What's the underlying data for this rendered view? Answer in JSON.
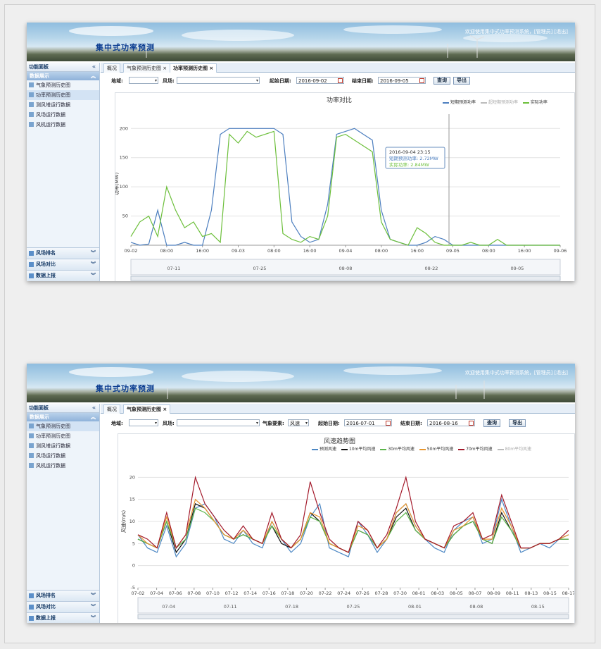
{
  "app": {
    "title": "集中式功率预测",
    "welcome": "欢迎使用集中式功率预测系统，[管理员] [退出]"
  },
  "sidebar": {
    "panel_title": "功能面板",
    "section_label": "数据展示",
    "items": [
      "气象预测历史图",
      "功率预测历史图",
      "测风塔运行数据",
      "风场运行数据",
      "风机运行数据"
    ],
    "bottom": [
      "风场排名",
      "风场对比",
      "数据上报"
    ]
  },
  "screen1": {
    "tabs": [
      {
        "label": "概况"
      },
      {
        "label": "气象预测历史图 ×"
      },
      {
        "label": "功率预测历史图 ×"
      }
    ],
    "filters": {
      "region_label": "地域:",
      "farm_label": "风场:",
      "start_label": "起始日期:",
      "start_value": "2016-09-02",
      "end_label": "结束日期:",
      "end_value": "2016-09-05",
      "query": "查询",
      "export": "导出"
    },
    "chart_data": {
      "type": "line",
      "title": "功率对比",
      "ylabel": "功率(MW)",
      "ylim": [
        0,
        210
      ],
      "yticks": [
        "50",
        "100",
        "150",
        "200"
      ],
      "x_ticks": [
        "09-02",
        "08:00",
        "16:00",
        "09-03",
        "08:00",
        "16:00",
        "09-04",
        "08:00",
        "16:00",
        "09-05",
        "08:00",
        "16:00",
        "09-06"
      ],
      "legend": [
        {
          "name": "短期预测功率",
          "color": "#4d7fbf"
        },
        {
          "name": "超短期预测功率",
          "color": "#bbbbbb"
        },
        {
          "name": "实际功率",
          "color": "#6cbf3a"
        }
      ],
      "series": [
        {
          "name": "短期预测功率",
          "color": "#4d7fbf",
          "values": [
            5,
            0,
            2,
            60,
            0,
            0,
            5,
            0,
            0,
            60,
            190,
            200,
            200,
            200,
            200,
            200,
            200,
            190,
            40,
            15,
            5,
            10,
            70,
            190,
            195,
            200,
            190,
            180,
            60,
            10,
            5,
            0,
            0,
            5,
            15,
            10,
            0,
            0,
            0,
            0,
            0,
            0,
            0,
            0,
            0,
            0,
            0,
            0,
            0
          ]
        },
        {
          "name": "实际功率",
          "color": "#6cbf3a",
          "values": [
            15,
            40,
            50,
            15,
            100,
            60,
            30,
            40,
            15,
            20,
            5,
            190,
            175,
            195,
            185,
            190,
            195,
            20,
            10,
            5,
            15,
            10,
            50,
            185,
            190,
            180,
            170,
            160,
            40,
            10,
            5,
            0,
            30,
            20,
            5,
            0,
            0,
            0,
            5,
            0,
            0,
            10,
            0,
            0,
            0,
            0,
            0,
            0,
            0
          ]
        }
      ],
      "tooltip": {
        "time": "2016-09-04 23:15",
        "line1": "短期预测功率: 2.72MW",
        "line2": "实际功率: 2.84MW"
      },
      "navigator_ticks": [
        "07-11",
        "07-25",
        "08-08",
        "08-22",
        "09-05"
      ]
    }
  },
  "screen2": {
    "tabs": [
      {
        "label": "概况"
      },
      {
        "label": "气象预测历史图 ×"
      }
    ],
    "filters": {
      "region_label": "地域:",
      "farm_label": "风场:",
      "element_label": "气象要素:",
      "element_value": "风速",
      "start_label": "起始日期:",
      "start_value": "2016-07-01",
      "end_label": "结束日期:",
      "end_value": "2016-08-16",
      "query": "查询",
      "export": "导出"
    },
    "chart_data": {
      "type": "line",
      "title": "风速趋势图",
      "ylabel": "风速(m/s)",
      "ylim": [
        -5,
        25
      ],
      "yticks": [
        "-5",
        "0",
        "5",
        "10",
        "15",
        "20"
      ],
      "x_ticks": [
        "07-02",
        "07-04",
        "07-06",
        "07-08",
        "07-10",
        "07-12",
        "07-14",
        "07-16",
        "07-18",
        "07-20",
        "07-22",
        "07-24",
        "07-26",
        "07-28",
        "07-30",
        "08-01",
        "08-03",
        "08-05",
        "08-07",
        "08-09",
        "08-11",
        "08-13",
        "08-15",
        "08-17"
      ],
      "legend": [
        {
          "name": "预测风速",
          "color": "#4d88c4"
        },
        {
          "name": "10m平均风速",
          "color": "#111111"
        },
        {
          "name": "30m平均风速",
          "color": "#5bb54a"
        },
        {
          "name": "50m平均风速",
          "color": "#e8962e"
        },
        {
          "name": "70m平均风速",
          "color": "#a3192a"
        },
        {
          "name": "80m平均风速",
          "color": "#bbbbbb"
        }
      ],
      "series": [
        {
          "name": "预测风速",
          "values": [
            7,
            4,
            3,
            9,
            2,
            5,
            13,
            14,
            11,
            6,
            5,
            8,
            5,
            4,
            10,
            6,
            3,
            5,
            11,
            14,
            4,
            3,
            2,
            10,
            7,
            3,
            6,
            12,
            14,
            9,
            6,
            4,
            3,
            8,
            10,
            11,
            5,
            6,
            15,
            9,
            3,
            4,
            5,
            4,
            6,
            7
          ]
        },
        {
          "name": "10m平均风速",
          "values": [
            6,
            5,
            4,
            10,
            3,
            6,
            14,
            13,
            10,
            7,
            6,
            7,
            6,
            5,
            9,
            5,
            4,
            6,
            12,
            10,
            5,
            4,
            3,
            8,
            7,
            4,
            6,
            11,
            13,
            8,
            6,
            5,
            4,
            7,
            9,
            10,
            6,
            5,
            12,
            8,
            4,
            4,
            5,
            5,
            6,
            6
          ]
        },
        {
          "name": "30m平均风速",
          "values": [
            6,
            5,
            4,
            10,
            4,
            6,
            13,
            12,
            10,
            7,
            6,
            7,
            6,
            5,
            9,
            6,
            4,
            6,
            11,
            10,
            5,
            4,
            3,
            8,
            7,
            4,
            6,
            10,
            12,
            8,
            6,
            5,
            4,
            7,
            9,
            10,
            6,
            5,
            11,
            8,
            4,
            4,
            5,
            5,
            6,
            6
          ]
        },
        {
          "name": "50m平均风速",
          "values": [
            7,
            5,
            4,
            11,
            4,
            7,
            15,
            13,
            10,
            7,
            6,
            8,
            6,
            5,
            10,
            6,
            4,
            6,
            12,
            11,
            5,
            4,
            3,
            9,
            8,
            4,
            6,
            12,
            14,
            9,
            6,
            5,
            4,
            8,
            9,
            11,
            6,
            6,
            13,
            9,
            4,
            4,
            5,
            5,
            6,
            7
          ]
        },
        {
          "name": "70m平均风速",
          "values": [
            7,
            6,
            4,
            12,
            4,
            7,
            20,
            14,
            11,
            8,
            6,
            9,
            6,
            5,
            12,
            6,
            4,
            7,
            19,
            12,
            6,
            4,
            3,
            10,
            8,
            4,
            7,
            13,
            20,
            10,
            6,
            5,
            4,
            9,
            10,
            12,
            6,
            7,
            16,
            10,
            4,
            4,
            5,
            5,
            6,
            8
          ]
        }
      ],
      "navigator_ticks": [
        "07-04",
        "07-11",
        "07-18",
        "07-25",
        "08-01",
        "08-08",
        "08-15"
      ]
    }
  }
}
